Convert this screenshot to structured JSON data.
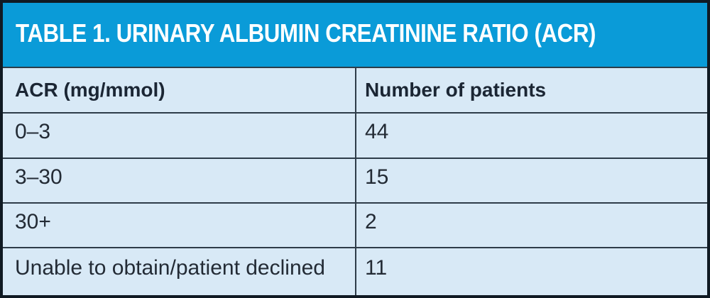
{
  "title": "TABLE 1. URINARY ALBUMIN CREATININE RATIO (ACR)",
  "table": {
    "headers": [
      "ACR (mg/mmol)",
      "Number of patients"
    ],
    "rows": [
      {
        "acr": "0–3",
        "patients": "44"
      },
      {
        "acr": "3–30",
        "patients": "15"
      },
      {
        "acr": "30+",
        "patients": "2"
      },
      {
        "acr": "Unable to obtain/patient declined",
        "patients": "11"
      }
    ]
  },
  "chart_data": {
    "type": "table",
    "title": "TABLE 1. URINARY ALBUMIN CREATININE RATIO (ACR)",
    "columns": [
      "ACR (mg/mmol)",
      "Number of patients"
    ],
    "rows": [
      [
        "0–3",
        44
      ],
      [
        "3–30",
        15
      ],
      [
        "30+",
        2
      ],
      [
        "Unable to obtain/patient declined",
        11
      ]
    ]
  },
  "colors": {
    "title_bar": "#0a9bd8",
    "table_background": "#d8e9f6",
    "outer_border": "#101a23",
    "grid_line": "#2e3c49",
    "title_text": "#ffffff",
    "header_text": "#1b2634",
    "body_text": "#232b35"
  }
}
